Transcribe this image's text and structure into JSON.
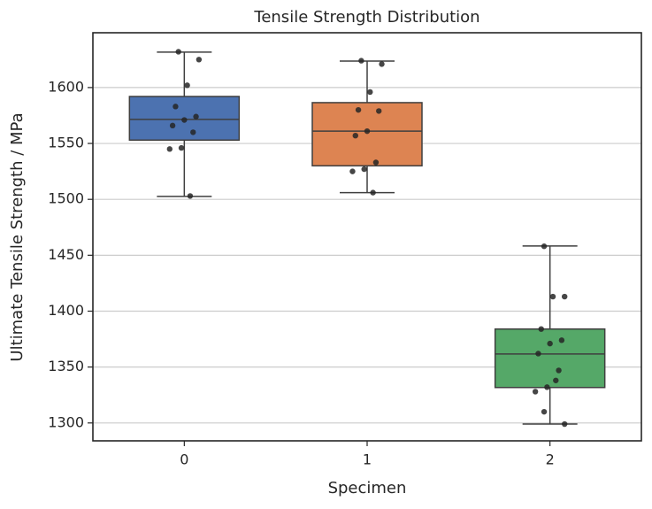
{
  "chart_data": {
    "type": "box",
    "title": "Tensile Strength Distribution",
    "x_label": "Specimen",
    "y_label": "Ultimate Tensile Strength / MPa",
    "categories": [
      "0",
      "1",
      "2"
    ],
    "ylim": [
      1284,
      1649
    ],
    "yticks": [
      1300,
      1350,
      1400,
      1450,
      1500,
      1550,
      1600
    ],
    "grid": true,
    "boxes": [
      {
        "color": "#4c72b0",
        "whislo": 1502.6,
        "q1": 1553,
        "med": 1571.5,
        "q3": 1592,
        "whishi": 1631.7,
        "points": [
          1632,
          1625,
          1602,
          1583,
          1574,
          1571,
          1566,
          1560,
          1546,
          1545,
          1503
        ]
      },
      {
        "color": "#dd8452",
        "whislo": 1506,
        "q1": 1530,
        "med": 1561,
        "q3": 1586.5,
        "whishi": 1623.7,
        "points": [
          1624,
          1621,
          1596,
          1580,
          1579,
          1561,
          1557,
          1533,
          1527,
          1525,
          1506
        ]
      },
      {
        "color": "#55a868",
        "whislo": 1299,
        "q1": 1331.7,
        "med": 1361.7,
        "q3": 1384,
        "whishi": 1458.3,
        "points": [
          1458,
          1413,
          1413,
          1384,
          1374,
          1371,
          1362,
          1347,
          1332,
          1328,
          1338,
          1310,
          1299
        ]
      }
    ]
  }
}
